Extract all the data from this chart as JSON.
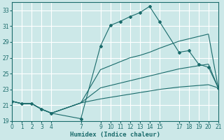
{
  "xlabel": "Humidex (Indice chaleur)",
  "bg_color": "#cce8e8",
  "grid_color": "#ffffff",
  "line_color": "#1a6b6b",
  "xlim": [
    0,
    21
  ],
  "ylim": [
    19,
    34
  ],
  "xticks": [
    0,
    1,
    2,
    3,
    4,
    7,
    9,
    10,
    11,
    12,
    13,
    14,
    15,
    17,
    18,
    19,
    20,
    21
  ],
  "yticks": [
    19,
    21,
    23,
    25,
    27,
    29,
    31,
    33
  ],
  "series1_x": [
    0,
    1,
    2,
    3,
    4,
    7,
    9,
    10,
    11,
    12,
    13,
    14,
    15,
    17,
    18,
    19,
    20,
    21
  ],
  "series1_y": [
    21.5,
    21.2,
    21.2,
    20.5,
    20.0,
    19.3,
    28.5,
    31.1,
    31.6,
    32.2,
    32.7,
    33.5,
    31.6,
    27.7,
    27.9,
    26.2,
    25.8,
    23.2
  ],
  "series2_x": [
    0,
    1,
    2,
    3,
    4,
    7,
    9,
    10,
    11,
    12,
    13,
    14,
    15,
    17,
    18,
    19,
    20,
    21
  ],
  "series2_y": [
    21.5,
    21.2,
    21.2,
    20.5,
    20.0,
    21.3,
    25.5,
    26.0,
    26.5,
    27.0,
    27.3,
    27.7,
    28.2,
    29.1,
    29.4,
    29.7,
    30.0,
    23.2
  ],
  "series3_x": [
    0,
    1,
    2,
    3,
    4,
    7,
    9,
    10,
    11,
    12,
    13,
    14,
    15,
    17,
    18,
    19,
    20,
    21
  ],
  "series3_y": [
    21.5,
    21.2,
    21.2,
    20.5,
    20.0,
    21.3,
    23.2,
    23.5,
    23.8,
    24.1,
    24.4,
    24.7,
    25.0,
    25.6,
    25.8,
    26.0,
    26.2,
    23.2
  ],
  "series4_x": [
    0,
    1,
    2,
    3,
    4,
    7,
    9,
    10,
    11,
    12,
    13,
    14,
    15,
    17,
    18,
    19,
    20,
    21
  ],
  "series4_y": [
    21.5,
    21.2,
    21.2,
    20.5,
    20.0,
    21.3,
    21.8,
    22.0,
    22.2,
    22.4,
    22.6,
    22.8,
    23.0,
    23.3,
    23.4,
    23.5,
    23.6,
    23.2
  ]
}
